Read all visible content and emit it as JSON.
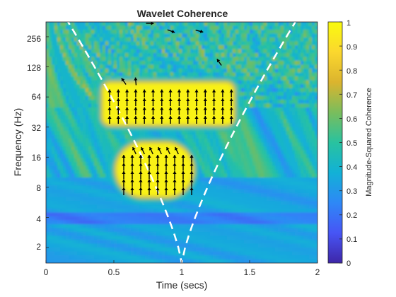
{
  "chart_data": {
    "type": "heatmap",
    "title": "Wavelet Coherence",
    "xlabel": "Time (secs)",
    "ylabel": "Frequency (Hz)",
    "colorbar_label": "Magnitude-Squared Coherence",
    "xlim": [
      0,
      2
    ],
    "ylim": [
      1.4,
      360
    ],
    "y_scale": "log2",
    "x_ticks": [
      "0",
      "0.5",
      "1",
      "1.5",
      "2"
    ],
    "x_tick_values": [
      0,
      0.5,
      1,
      1.5,
      2
    ],
    "y_ticks": [
      "2",
      "4",
      "8",
      "16",
      "32",
      "64",
      "128",
      "256"
    ],
    "y_tick_values": [
      2,
      4,
      8,
      16,
      32,
      64,
      128,
      256
    ],
    "colorbar_ticks": [
      "0",
      "0.1",
      "0.2",
      "0.3",
      "0.4",
      "0.5",
      "0.6",
      "0.7",
      "0.8",
      "0.9",
      "1"
    ],
    "colorbar_tick_values": [
      0,
      0.1,
      0.2,
      0.3,
      0.4,
      0.5,
      0.6,
      0.7,
      0.8,
      0.9,
      1
    ],
    "clim": [
      0,
      1
    ],
    "colormap": [
      "#3e26a8",
      "#4755f5",
      "#2e88f6",
      "#12b1d6",
      "#29c29f",
      "#7abd5c",
      "#dbb42e",
      "#fbd72e",
      "#f9fb0e"
    ],
    "grid": false,
    "high_coherence_regions": [
      {
        "t_start": 0.42,
        "t_end": 1.38,
        "f_low": 34,
        "f_high": 88,
        "coherence": 0.97
      },
      {
        "t_start": 0.52,
        "t_end": 1.08,
        "f_low": 6.5,
        "f_high": 22,
        "coherence": 0.97
      }
    ],
    "cone_of_influence": {
      "style": "dashed",
      "color": "#ffffff",
      "min_frequency": 1.4,
      "min_at_time": 1.0
    },
    "phase_arrows": {
      "color": "#000000",
      "direction": "up",
      "meaning": "in-phase"
    }
  }
}
